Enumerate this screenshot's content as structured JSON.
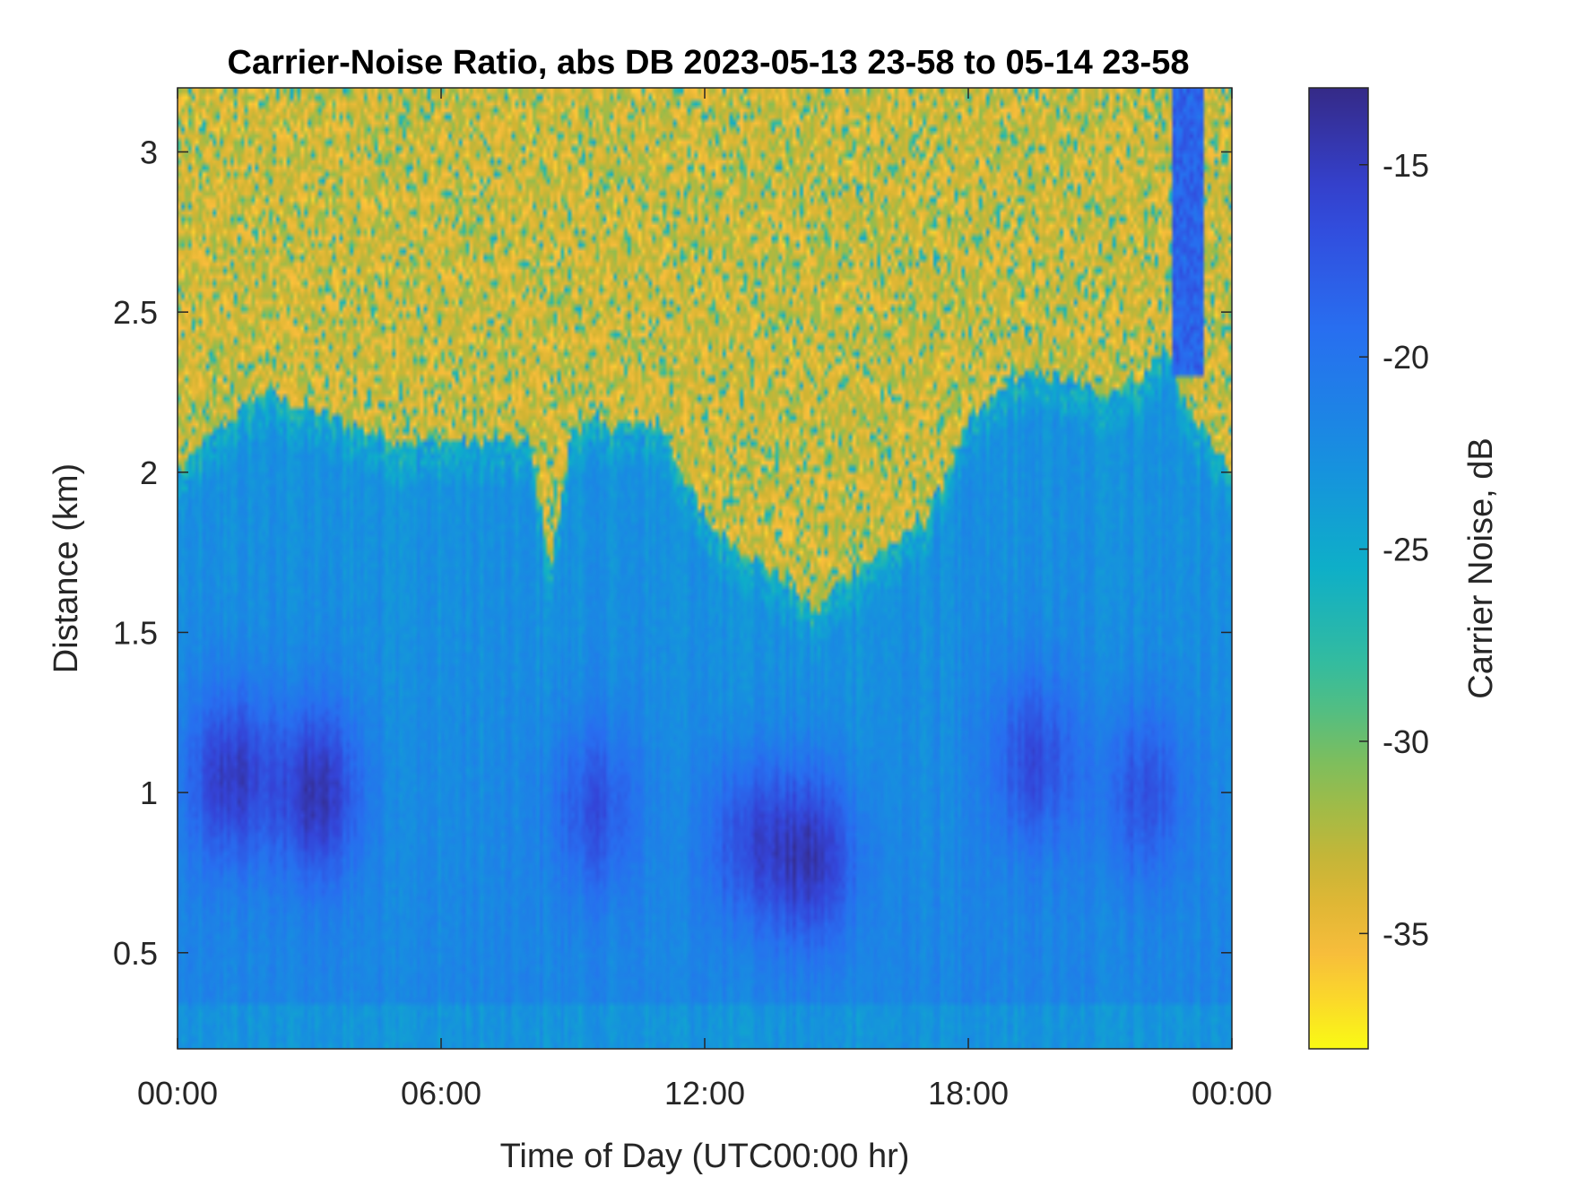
{
  "chart_data": {
    "type": "heatmap",
    "title": "Carrier-Noise Ratio, abs DB 2023-05-13 23-58 to 05-14 23-58",
    "xlabel": "Time of Day (UTC00:00 hr)",
    "ylabel": "Distance (km)",
    "colorbar_label": "Carrier Noise, dB",
    "x_range_hours": [
      0,
      24
    ],
    "y_range_km": [
      0.2,
      3.2
    ],
    "color_range_db": [
      -38,
      -13
    ],
    "colormap": "parula",
    "colormap_reversed": true,
    "x_ticks": [
      {
        "value": 0,
        "label": "00:00"
      },
      {
        "value": 6,
        "label": "06:00"
      },
      {
        "value": 12,
        "label": "12:00"
      },
      {
        "value": 18,
        "label": "18:00"
      },
      {
        "value": 24,
        "label": "00:00"
      }
    ],
    "y_ticks": [
      {
        "value": 0.5,
        "label": "0.5"
      },
      {
        "value": 1,
        "label": "1"
      },
      {
        "value": 1.5,
        "label": "1.5"
      },
      {
        "value": 2,
        "label": "2"
      },
      {
        "value": 2.5,
        "label": "2.5"
      },
      {
        "value": 3,
        "label": "3"
      }
    ],
    "colorbar_ticks": [
      {
        "value": -15,
        "label": "-15"
      },
      {
        "value": -20,
        "label": "-20"
      },
      {
        "value": -25,
        "label": "-25"
      },
      {
        "value": -30,
        "label": "-30"
      },
      {
        "value": -35,
        "label": "-35"
      }
    ],
    "signal_top_km_by_hour": {
      "hours": [
        0,
        1,
        2,
        3,
        4,
        5,
        6,
        7,
        8,
        8.5,
        9,
        10,
        11,
        11.5,
        12,
        13,
        14,
        14.5,
        15,
        16,
        17,
        17.5,
        18,
        19,
        20,
        21,
        22,
        22.5,
        23,
        24
      ],
      "top_km": [
        2.0,
        2.15,
        2.25,
        2.2,
        2.15,
        2.1,
        2.1,
        2.1,
        2.1,
        1.7,
        2.15,
        2.15,
        2.15,
        2.0,
        1.85,
        1.75,
        1.65,
        1.55,
        1.65,
        1.75,
        1.85,
        2.0,
        2.15,
        2.3,
        2.3,
        2.25,
        2.3,
        2.4,
        2.2,
        2.0
      ]
    },
    "strong_cores": [
      {
        "hour": 1.2,
        "km": 1.05,
        "db": -14.5
      },
      {
        "hour": 3.2,
        "km": 1.0,
        "db": -14.0
      },
      {
        "hour": 9.5,
        "km": 0.95,
        "db": -16.5
      },
      {
        "hour": 13.0,
        "km": 0.85,
        "db": -16.0
      },
      {
        "hour": 14.5,
        "km": 0.8,
        "db": -14.5
      },
      {
        "hour": 19.5,
        "km": 1.1,
        "db": -16.0
      },
      {
        "hour": 22.0,
        "km": 1.0,
        "db": -16.5
      }
    ],
    "high_plume": {
      "hour": 23.0,
      "km_from": 2.3,
      "km_to": 3.2,
      "db": -17
    }
  }
}
